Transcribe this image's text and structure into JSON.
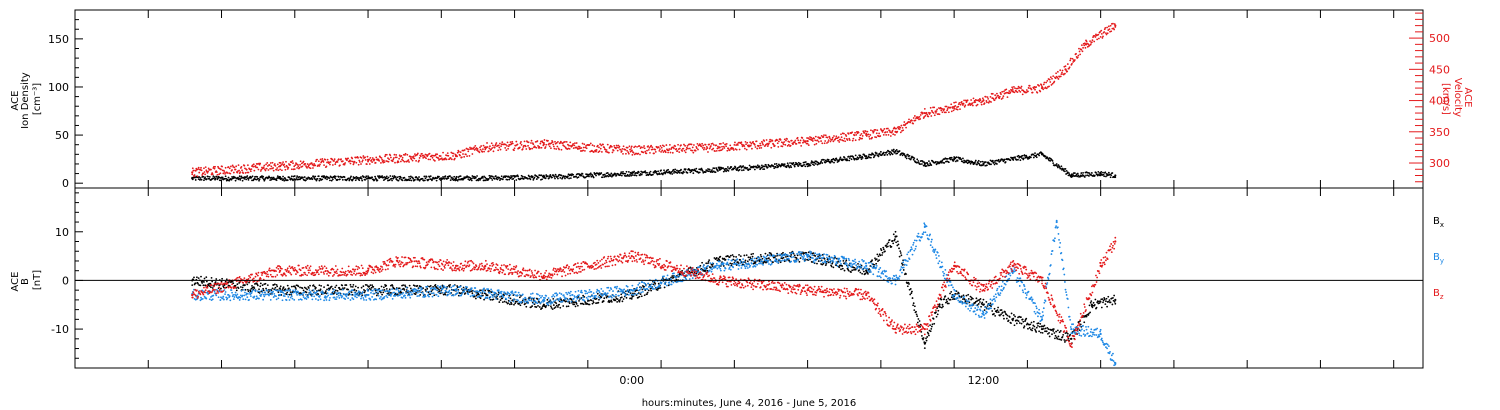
{
  "colors": {
    "black": "#000000",
    "red": "#e41a1c",
    "blue": "#1e88e5"
  },
  "chart_data": [
    {
      "type": "scatter",
      "panel": "top",
      "left_axis_title_lines": [
        "ACE",
        "Ion Density",
        "[cm⁻³]"
      ],
      "right_axis_title_lines": [
        "ACE",
        "Velocity",
        "[km/s]"
      ],
      "left_ylim": [
        -5,
        180
      ],
      "left_yticks": [
        0,
        50,
        100,
        150
      ],
      "right_ylim": [
        260,
        545
      ],
      "right_yticks": [
        300,
        350,
        400,
        450,
        500
      ],
      "series": [
        {
          "key": "density",
          "color": "#000000",
          "axis": "left",
          "x": [
            -15,
            -12,
            -9,
            -6,
            -3,
            0,
            3,
            6,
            8,
            9,
            10,
            11,
            12,
            13,
            14,
            15,
            16,
            16.5
          ],
          "y": [
            5,
            5,
            5,
            5,
            6,
            10,
            14,
            20,
            28,
            33,
            20,
            25,
            20,
            25,
            30,
            8,
            10,
            8
          ]
        },
        {
          "key": "velocity",
          "color": "#e41a1c",
          "axis": "right",
          "x": [
            -15,
            -12,
            -9,
            -6,
            -5,
            -3,
            0,
            3,
            6,
            8,
            9,
            10,
            11,
            12,
            13,
            14,
            14.8,
            15.5,
            16.5
          ],
          "y": [
            285,
            295,
            305,
            312,
            325,
            330,
            320,
            325,
            335,
            345,
            350,
            380,
            390,
            400,
            415,
            420,
            450,
            490,
            520
          ]
        }
      ]
    },
    {
      "type": "scatter",
      "panel": "bottom",
      "left_axis_title_lines": [
        "ACE",
        "B",
        "[nT]"
      ],
      "ylim": [
        -18,
        19
      ],
      "yticks": [
        -10,
        0,
        10
      ],
      "legend": [
        {
          "label": "B",
          "sub": "x",
          "color": "#000000"
        },
        {
          "label": "B",
          "sub": "y",
          "color": "#1e88e5"
        },
        {
          "label": "B",
          "sub": "z",
          "color": "#e41a1c"
        }
      ],
      "series": [
        {
          "key": "bx",
          "color": "#000000",
          "x": [
            -15,
            -12,
            -9,
            -6,
            -3,
            0,
            3,
            6,
            8,
            9,
            10,
            10.5,
            11,
            12,
            13,
            14,
            15,
            15.7,
            16.5
          ],
          "y": [
            0,
            -2,
            -2,
            -2,
            -5,
            -3,
            4,
            5,
            2,
            9,
            -13,
            -5,
            -3,
            -5,
            -8,
            -10,
            -12,
            -5,
            -4
          ]
        },
        {
          "key": "by",
          "color": "#1e88e5",
          "x": [
            -15,
            -12,
            -9,
            -6,
            -3,
            0,
            3,
            6,
            8,
            9,
            10,
            11,
            12,
            13,
            14,
            14.5,
            15,
            16,
            16.5
          ],
          "y": [
            -3,
            -3,
            -3,
            -2,
            -4,
            -2,
            3,
            5,
            3,
            0,
            11,
            -3,
            -7,
            2,
            -8,
            12,
            -10,
            -11,
            -17
          ]
        },
        {
          "key": "bz",
          "color": "#e41a1c",
          "x": [
            -15,
            -12,
            -9,
            -8,
            -6,
            -5,
            -3,
            0,
            3,
            6,
            8,
            9,
            10,
            11,
            12,
            13,
            14,
            15,
            16,
            16.5
          ],
          "y": [
            -3,
            2,
            2,
            4,
            3,
            3,
            1,
            5,
            0,
            -2,
            -3,
            -10,
            -10,
            3,
            -2,
            3,
            0,
            -13,
            3,
            8
          ]
        }
      ]
    }
  ],
  "xaxis": {
    "xlim": [
      -19,
      27
    ],
    "ticks": [
      {
        "x": 0,
        "label": "0:00"
      },
      {
        "x": 12,
        "label": "12:00"
      }
    ],
    "minor_step_hours": 2.5,
    "label": "hours:minutes, June  4, 2016 - June  5, 2016"
  }
}
